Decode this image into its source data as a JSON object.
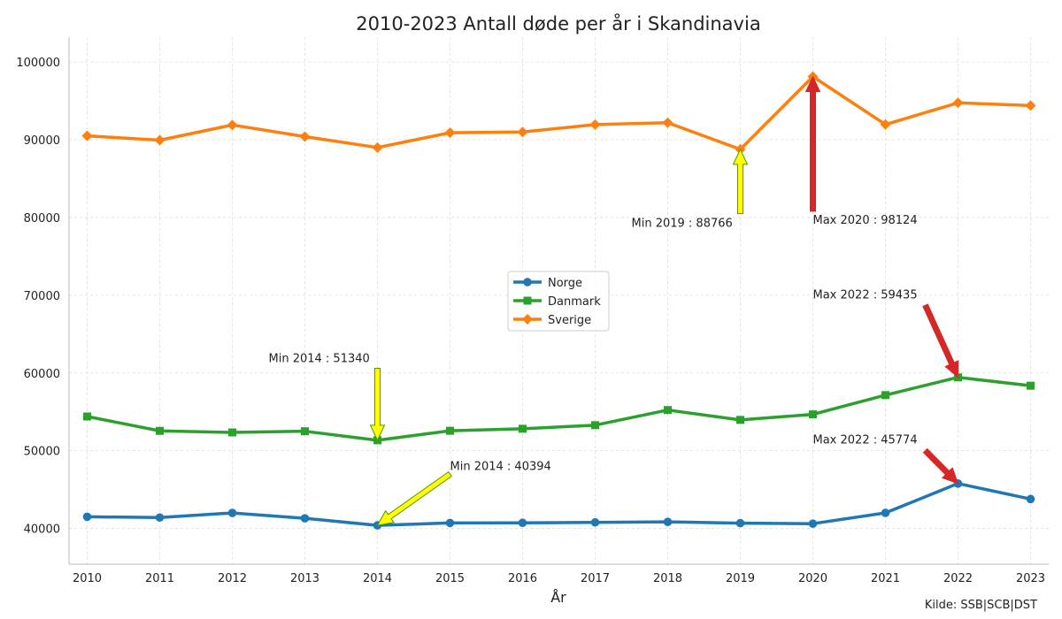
{
  "chart_data": {
    "type": "line",
    "title": "2010-2023 Antall døde per år i Skandinavia",
    "xlabel": "År",
    "ylabel": "",
    "source": "Kilde: SSB|SCB|DST",
    "x": [
      2010,
      2011,
      2012,
      2013,
      2014,
      2015,
      2016,
      2017,
      2018,
      2019,
      2020,
      2021,
      2022,
      2023
    ],
    "xlim": [
      2009.75,
      2023.25
    ],
    "ylim": [
      35400,
      103200
    ],
    "yticks": [
      40000,
      50000,
      60000,
      70000,
      80000,
      90000,
      100000
    ],
    "grid": true,
    "legend_position": "center",
    "series": [
      {
        "name": "Norge",
        "color": "#1f77b4",
        "marker": "circle",
        "values": [
          41500,
          41400,
          41990,
          41300,
          40394,
          40700,
          40720,
          40780,
          40840,
          40680,
          40610,
          42000,
          45774,
          43780
        ]
      },
      {
        "name": "Danmark",
        "color": "#2ca02c",
        "marker": "square",
        "values": [
          54400,
          52550,
          52350,
          52500,
          51340,
          52560,
          52820,
          53280,
          55230,
          53960,
          54670,
          57150,
          59435,
          58360
        ]
      },
      {
        "name": "Sverige",
        "color": "#ff7f0e",
        "marker": "diamond",
        "values": [
          90500,
          89950,
          91900,
          90400,
          89000,
          90900,
          91000,
          91950,
          92200,
          88766,
          98124,
          91960,
          94750,
          94400
        ]
      }
    ],
    "annotations": [
      {
        "text": "Min 2019 : 88766",
        "x": 2019,
        "y": 88766,
        "text_x": 2017.5,
        "text_y": 78800,
        "arrow_tail": [
          2019,
          80500
        ],
        "kind": "min"
      },
      {
        "text": "Max 2020 : 98124",
        "x": 2020,
        "y": 98124,
        "text_x": 2020,
        "text_y": 79200,
        "arrow_tail": [
          2020,
          80800
        ],
        "kind": "max"
      },
      {
        "text": "Max 2022 : 59435",
        "x": 2022,
        "y": 59435,
        "text_x": 2020,
        "text_y": 69600,
        "arrow_tail": [
          2021.55,
          68700
        ],
        "kind": "max"
      },
      {
        "text": "Min 2014 : 51340",
        "x": 2014,
        "y": 51340,
        "text_x": 2012.5,
        "text_y": 61400,
        "arrow_tail": [
          2014,
          60600
        ],
        "kind": "min"
      },
      {
        "text": "Max 2022 : 45774",
        "x": 2022,
        "y": 45774,
        "text_x": 2020,
        "text_y": 50900,
        "arrow_tail": [
          2021.55,
          50000
        ],
        "kind": "max"
      },
      {
        "text": "Min 2014 : 40394",
        "x": 2014,
        "y": 40394,
        "text_x": 2015,
        "text_y": 47500,
        "arrow_tail": [
          2015,
          47000
        ],
        "kind": "min"
      }
    ],
    "arrow_colors": {
      "max": "#d62728",
      "min_fill": "#ffff00",
      "min_edge": "#4f9a00"
    }
  }
}
